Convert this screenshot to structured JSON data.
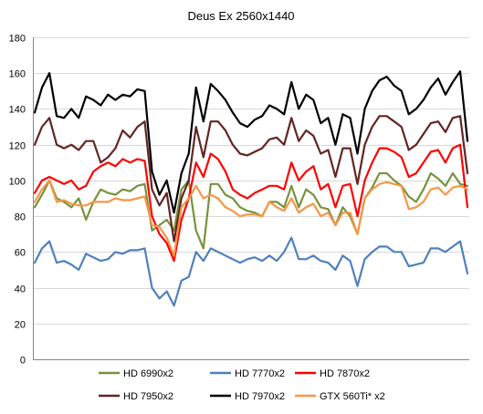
{
  "chart_data": {
    "type": "line",
    "title": "Deus Ex 2560x1440",
    "xlabel": "",
    "ylabel": "",
    "ylim": [
      0,
      180
    ],
    "yticks": [
      0,
      20,
      40,
      60,
      80,
      100,
      120,
      140,
      160,
      180
    ],
    "ytick_labels": [
      "0",
      "20",
      "40",
      "60",
      "80",
      "100",
      "120",
      "140",
      "160",
      "180"
    ],
    "grid": "horizontal",
    "legend_position": "bottom",
    "series": [
      {
        "name": "HD 6990x2",
        "color": "#77933c",
        "values": [
          85,
          92,
          100,
          90,
          88,
          85,
          90,
          78,
          88,
          95,
          93,
          92,
          95,
          94,
          97,
          98,
          72,
          75,
          78,
          72,
          95,
          100,
          72,
          62,
          98,
          98,
          92,
          90,
          85,
          83,
          82,
          80,
          88,
          88,
          85,
          97,
          85,
          95,
          92,
          85,
          84,
          75,
          85,
          80,
          70,
          90,
          96,
          104,
          104,
          100,
          97,
          91,
          88,
          95,
          104,
          101,
          97,
          104,
          98,
          97
        ]
      },
      {
        "name": "HD 7770x2",
        "color": "#4f81bd",
        "values": [
          54,
          62,
          66,
          54,
          55,
          53,
          50,
          59,
          57,
          55,
          56,
          60,
          59,
          61,
          61,
          62,
          40,
          34,
          38,
          30,
          44,
          46,
          60,
          55,
          62,
          60,
          58,
          56,
          54,
          56,
          57,
          55,
          58,
          55,
          60,
          68,
          56,
          56,
          58,
          55,
          54,
          50,
          58,
          55,
          41,
          56,
          60,
          63,
          63,
          60,
          60,
          52,
          53,
          54,
          62,
          62,
          60,
          63,
          66,
          48
        ]
      },
      {
        "name": "HD 7870x2",
        "color": "#ff0000",
        "values": [
          93,
          100,
          102,
          100,
          98,
          100,
          95,
          97,
          105,
          108,
          110,
          108,
          112,
          110,
          112,
          111,
          80,
          70,
          65,
          55,
          78,
          90,
          110,
          102,
          115,
          112,
          105,
          95,
          92,
          90,
          93,
          95,
          97,
          97,
          95,
          110,
          100,
          105,
          108,
          95,
          98,
          85,
          97,
          98,
          80,
          100,
          110,
          118,
          118,
          116,
          113,
          102,
          104,
          110,
          116,
          117,
          110,
          118,
          120,
          85
        ]
      },
      {
        "name": "HD 7950x2",
        "color": "#632523",
        "values": [
          120,
          130,
          135,
          120,
          118,
          120,
          117,
          122,
          122,
          110,
          113,
          118,
          128,
          124,
          130,
          133,
          95,
          86,
          93,
          66,
          90,
          100,
          130,
          113,
          133,
          133,
          128,
          120,
          115,
          114,
          116,
          118,
          123,
          124,
          120,
          135,
          122,
          128,
          125,
          115,
          117,
          102,
          118,
          118,
          98,
          120,
          130,
          136,
          136,
          133,
          130,
          117,
          120,
          126,
          132,
          133,
          127,
          135,
          136,
          104
        ]
      },
      {
        "name": "HD 7970x2",
        "color": "#000000",
        "values": [
          138,
          152,
          160,
          136,
          135,
          140,
          135,
          147,
          145,
          142,
          148,
          145,
          148,
          147,
          151,
          150,
          105,
          92,
          100,
          82,
          104,
          115,
          152,
          133,
          154,
          150,
          145,
          138,
          132,
          130,
          134,
          136,
          142,
          140,
          137,
          155,
          140,
          148,
          145,
          132,
          135,
          120,
          137,
          135,
          115,
          140,
          150,
          156,
          158,
          153,
          150,
          137,
          140,
          145,
          152,
          157,
          148,
          155,
          161,
          122
        ]
      },
      {
        "name": "GTX 560Ti* x2",
        "color": "#f79646",
        "values": [
          88,
          95,
          100,
          88,
          89,
          87,
          86,
          86,
          88,
          88,
          88,
          90,
          89,
          89,
          90,
          91,
          75,
          74,
          68,
          58,
          85,
          90,
          97,
          90,
          92,
          90,
          85,
          83,
          80,
          81,
          81,
          80,
          88,
          85,
          83,
          90,
          82,
          85,
          87,
          80,
          82,
          75,
          82,
          82,
          70,
          90,
          95,
          98,
          99,
          98,
          97,
          84,
          85,
          88,
          95,
          96,
          92,
          96,
          97,
          95
        ]
      }
    ]
  }
}
